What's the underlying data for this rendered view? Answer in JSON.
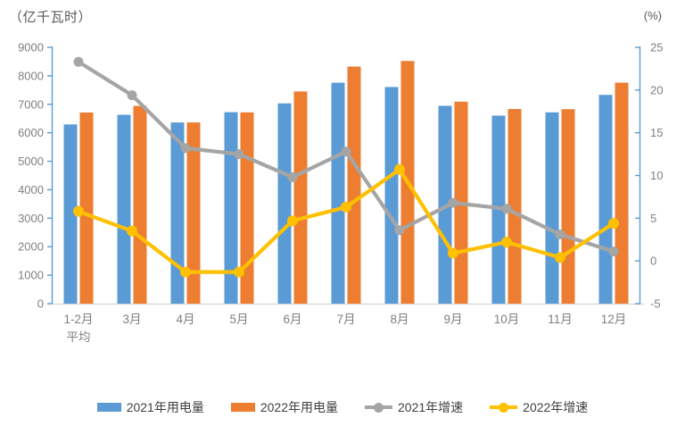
{
  "title_left": "（亿千瓦时）",
  "title_right": "(%)",
  "chart_data": {
    "type": "combo-bar-line",
    "title": "",
    "categories": [
      "1-2月平均",
      "3月",
      "4月",
      "5月",
      "6月",
      "7月",
      "8月",
      "9月",
      "10月",
      "11月",
      "12月"
    ],
    "category_display": [
      [
        "1-2月",
        "平均"
      ],
      [
        "3月"
      ],
      [
        "4月"
      ],
      [
        "5月"
      ],
      [
        "6月"
      ],
      [
        "7月"
      ],
      [
        "8月"
      ],
      [
        "9月"
      ],
      [
        "10月"
      ],
      [
        "11月"
      ],
      [
        "12月"
      ]
    ],
    "series": [
      {
        "name": "2021年用电量",
        "type": "bar",
        "axis": "left",
        "color": "#5B9BD5",
        "values": [
          6294,
          6631,
          6361,
          6724,
          7033,
          7758,
          7607,
          6947,
          6603,
          6718,
          7330
        ]
      },
      {
        "name": "2022年用电量",
        "type": "bar",
        "axis": "left",
        "color": "#ED7D31",
        "values": [
          6711,
          6944,
          6362,
          6716,
          7451,
          8324,
          8520,
          7092,
          6834,
          6828,
          7760
        ]
      },
      {
        "name": "2021年增速",
        "type": "line",
        "axis": "right",
        "color": "#A5A5A5",
        "values": [
          23.3,
          19.4,
          13.2,
          12.5,
          9.8,
          12.8,
          3.6,
          6.8,
          6.1,
          3.1,
          1.1
        ]
      },
      {
        "name": "2022年增速",
        "type": "line",
        "axis": "right",
        "color": "#FFC000",
        "values": [
          5.8,
          3.5,
          -1.3,
          -1.3,
          4.7,
          6.3,
          10.7,
          0.9,
          2.2,
          0.4,
          4.4
        ]
      }
    ],
    "left_axis": {
      "title": "（亿千瓦时）",
      "min": 0,
      "max": 9000,
      "step": 1000
    },
    "right_axis": {
      "title": "(%)",
      "min": -5,
      "max": 25,
      "step": 5
    },
    "legend_position": "bottom",
    "grid": false
  },
  "colors": {
    "value_axis_line": "#5B9BD5",
    "category_axis_line": "#D9D9D9",
    "tick_label": "#808080",
    "axis_title": "#595959",
    "legend_text": "#3F3F3F",
    "background": "#FFFFFF"
  }
}
